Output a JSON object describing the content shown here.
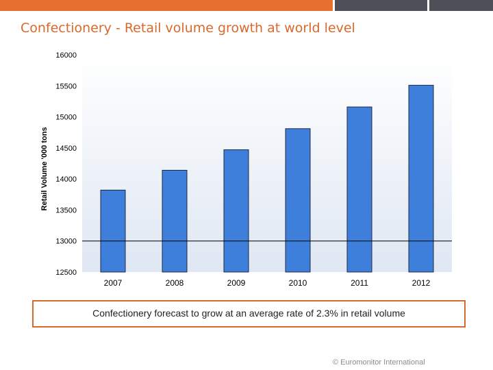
{
  "page": {
    "title": "Confectionery - Retail volume growth at world level",
    "callout": "Confectionery forecast to grow at an average rate of 2.3% in retail volume",
    "footer": "© Euromonitor International"
  },
  "colors": {
    "accent": "#e8712f",
    "title": "#d9682a",
    "bar": "#3f7fdc",
    "dark_bar": "#4d5157"
  },
  "chart_data": {
    "type": "bar",
    "categories": [
      "2007",
      "2008",
      "2009",
      "2010",
      "2011",
      "2012"
    ],
    "values": [
      13820,
      14140,
      14470,
      14810,
      15160,
      15510
    ],
    "title": "",
    "xlabel": "",
    "ylabel": "Retail Volume '000 tons",
    "ylim": [
      12500,
      16000
    ],
    "yticks": [
      "16000",
      "15500",
      "15000",
      "14500",
      "14000",
      "13500",
      "13000",
      "12500"
    ],
    "reference_line": 13000,
    "grid": false,
    "legend": "none"
  }
}
